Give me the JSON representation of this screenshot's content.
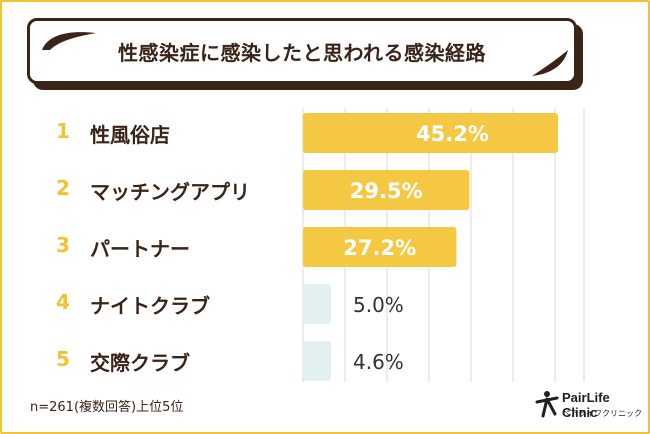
{
  "title": "性感染症に感染したと思われる感染経路",
  "footnote": "n=261(複数回答)上位5位",
  "brand": {
    "name": "PairLife Clinic",
    "sub": "ペアライフクリニック"
  },
  "colors": {
    "bar": "#f5c843",
    "bar_small": "#e3f0f1",
    "text": "#3a2417",
    "accent": "#f2c232",
    "grid": "#d9d9d9"
  },
  "chart_data": {
    "type": "bar",
    "orientation": "horizontal",
    "title": "性感染症に感染したと思われる感染経路",
    "categories": [
      "性風俗店",
      "マッチングアプリ",
      "パートナー",
      "ナイトクラブ",
      "交際クラブ"
    ],
    "ranks": [
      "1",
      "2",
      "3",
      "4",
      "5"
    ],
    "values": [
      45.2,
      29.5,
      27.2,
      5.0,
      4.6
    ],
    "value_labels": [
      "45.2%",
      "29.5%",
      "27.2%",
      "5.0%",
      "4.6%"
    ],
    "xlim": [
      0,
      50
    ],
    "grid": true
  }
}
